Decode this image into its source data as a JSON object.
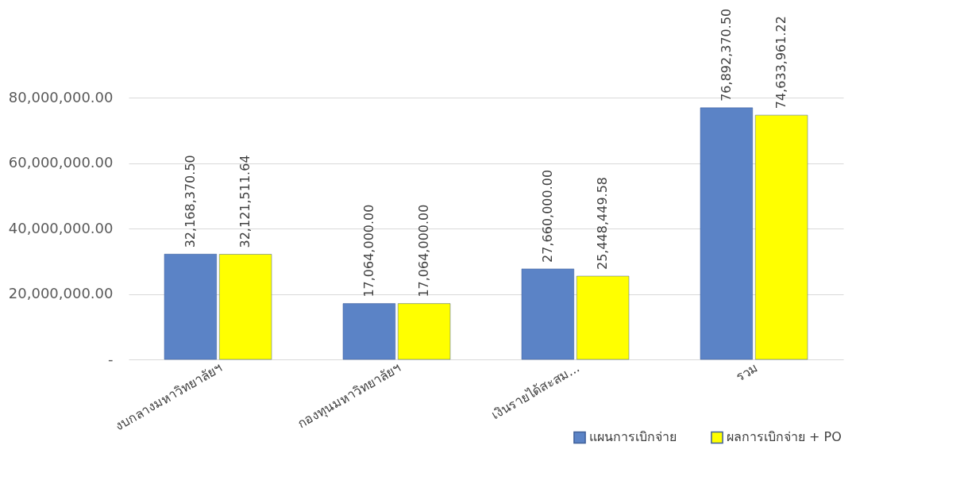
{
  "chart_data": {
    "type": "bar",
    "categories": [
      "งบกลางมหาวิทยาลัยฯ",
      "กองทุนมหาวิทยาลัยฯ",
      "เงินรายได้สะสม...",
      "รวม"
    ],
    "series": [
      {
        "name": "แผนการเบิกจ่าย",
        "color": "#5b83c6",
        "values": [
          32168370.5,
          17064000.0,
          27660000.0,
          76892370.5
        ],
        "value_labels": [
          "32,168,370.50",
          "17,064,000.00",
          "27,660,000.00",
          "76,892,370.50"
        ]
      },
      {
        "name": "ผลการเบิกจ่าย + PO",
        "color": "#ffff00",
        "values": [
          32121511.64,
          17064000.0,
          25448449.58,
          74633961.22
        ],
        "value_labels": [
          "32,121,511.64",
          "17,064,000.00",
          "25,448,449.58",
          "74,633,961.22"
        ]
      }
    ],
    "ylim": [
      0,
      80000000
    ],
    "yticks": [
      {
        "value": 0,
        "label": "-"
      },
      {
        "value": 20000000,
        "label": "20,000,000.00"
      },
      {
        "value": 40000000,
        "label": "40,000,000.00"
      },
      {
        "value": 60000000,
        "label": "60,000,000.00"
      },
      {
        "value": 80000000,
        "label": "80,000,000.00"
      }
    ],
    "grid": "y",
    "legend": "bottom right"
  }
}
